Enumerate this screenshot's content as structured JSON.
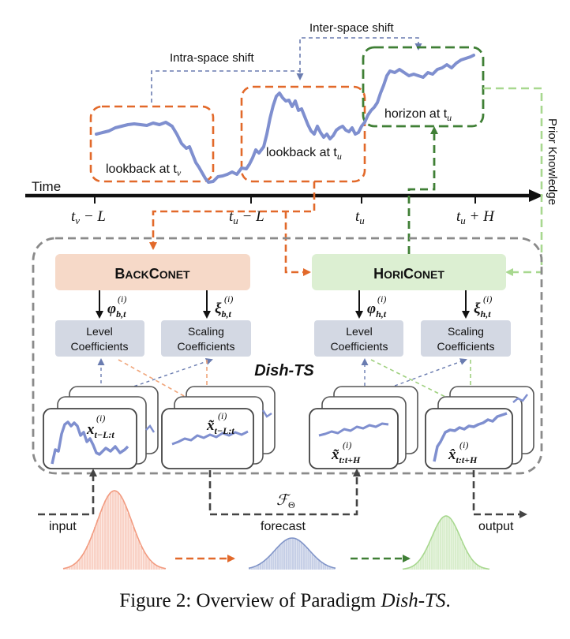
{
  "colors": {
    "series": "#7f8fcf",
    "lookback": "#e2692a",
    "horizon": "#3f7f35",
    "prior": "#a8d88f",
    "gray_dash": "#8a8a8a",
    "blue_dash": "#6a7cb0",
    "backconet_fill": "#f6d9c8",
    "horiconet_fill": "#dcefd2",
    "coef_fill": "#d3d8e3",
    "dist_input": "#f29b80",
    "dist_forecast": "#8094c8",
    "dist_output": "#a8d88f"
  },
  "labels": {
    "inter_space_shift": "Inter-space shift",
    "intra_space_shift": "Intra-space shift",
    "lookback_v": "lookback at t",
    "lookback_v_sub": "v",
    "lookback_u": "lookback at t",
    "lookback_u_sub": "u",
    "horizon_u": "horizon at t",
    "horizon_u_sub": "u",
    "prior_knowledge": "Prior Knowledge",
    "time": "Time",
    "ticks": [
      {
        "base": "t",
        "sub": "v",
        "rest": " − L"
      },
      {
        "base": "t",
        "sub": "u",
        "rest": " − L"
      },
      {
        "base": "t",
        "sub": "u",
        "rest": ""
      },
      {
        "base": "t",
        "sub": "u",
        "rest": " + H"
      }
    ],
    "dish_ts": "Dish-TS",
    "backconet_big1": "B",
    "backconet_small1": "ACK",
    "backconet_big2": "C",
    "backconet_small2": "ONET",
    "horiconet_big1": "H",
    "horiconet_small1": "ORI",
    "horiconet_big2": "C",
    "horiconet_small2": "ONET",
    "phi_b": "φ",
    "phi_b_sub": "b,t",
    "xi_b": "ξ",
    "xi_b_sub": "b,t",
    "phi_h": "φ",
    "phi_h_sub": "h,t",
    "xi_h": "ξ",
    "xi_h_sub": "h,t",
    "sup_i": "(i)",
    "level_coef_1": "Level",
    "level_coef_2": "Coefficients",
    "scaling_coef_1": "Scaling",
    "scaling_coef_2": "Coefficients",
    "x_lookback": "x",
    "x_lookback_sub": "t−L:t",
    "x_tilde_lookback": "x̃",
    "x_tilde_lookback_sub": "t−L:t",
    "x_tilde_horizon": "x̃",
    "x_tilde_horizon_sub": "t:t+H",
    "x_hat_horizon": "x̂",
    "x_hat_horizon_sub": "t:t+H",
    "f_theta": "𝒻",
    "f_theta_display": "ℱ",
    "f_theta_sub": "Θ",
    "input": "input",
    "forecast": "forecast",
    "output": "output"
  },
  "caption": {
    "prefix": "Figure 2: Overview of Paradigm ",
    "em": "Dish-TS",
    "suffix": "."
  }
}
